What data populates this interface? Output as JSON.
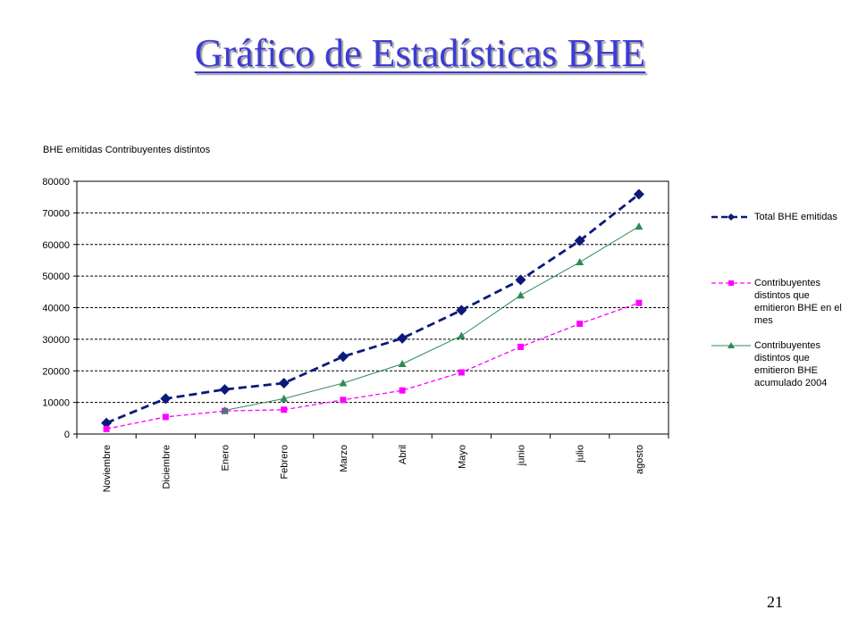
{
  "slide": {
    "title": "Gráfico de Estadísticas BHE",
    "page_number": "21"
  },
  "chart_data": {
    "type": "line",
    "title": "",
    "ylabel": "BHE emitidas Contribuyentes distintos",
    "xlabel": "",
    "categories": [
      "Noviembre",
      "Diciembre",
      "Enero",
      "Febrero",
      "Marzo",
      "Abril",
      "Mayo",
      "junio",
      "julio",
      "agosto"
    ],
    "ylim": [
      0,
      80000
    ],
    "yticks": [
      0,
      10000,
      20000,
      30000,
      40000,
      50000,
      60000,
      70000,
      80000
    ],
    "grid": true,
    "legend_position": "right",
    "series": [
      {
        "name": "Total BHE emitidas",
        "color": "#0b1a7a",
        "marker": "diamond",
        "line_style": "dashed",
        "values": [
          3500,
          11200,
          14100,
          16100,
          24500,
          30300,
          39200,
          48800,
          61200,
          75900
        ]
      },
      {
        "name": "Contribuyentes distintos que emitieron BHE en el mes",
        "color": "#ff00ff",
        "marker": "square",
        "line_style": "dashed",
        "values": [
          1600,
          5400,
          7300,
          7700,
          10800,
          13800,
          19500,
          27600,
          34900,
          41500
        ]
      },
      {
        "name": "Contribuyentes distintos que emitieron BHE acumulado 2004",
        "color": "#2e8b57",
        "marker": "triangle",
        "line_style": "solid",
        "values": [
          null,
          null,
          7500,
          11200,
          16100,
          22200,
          31100,
          43900,
          54400,
          65700
        ]
      }
    ]
  }
}
